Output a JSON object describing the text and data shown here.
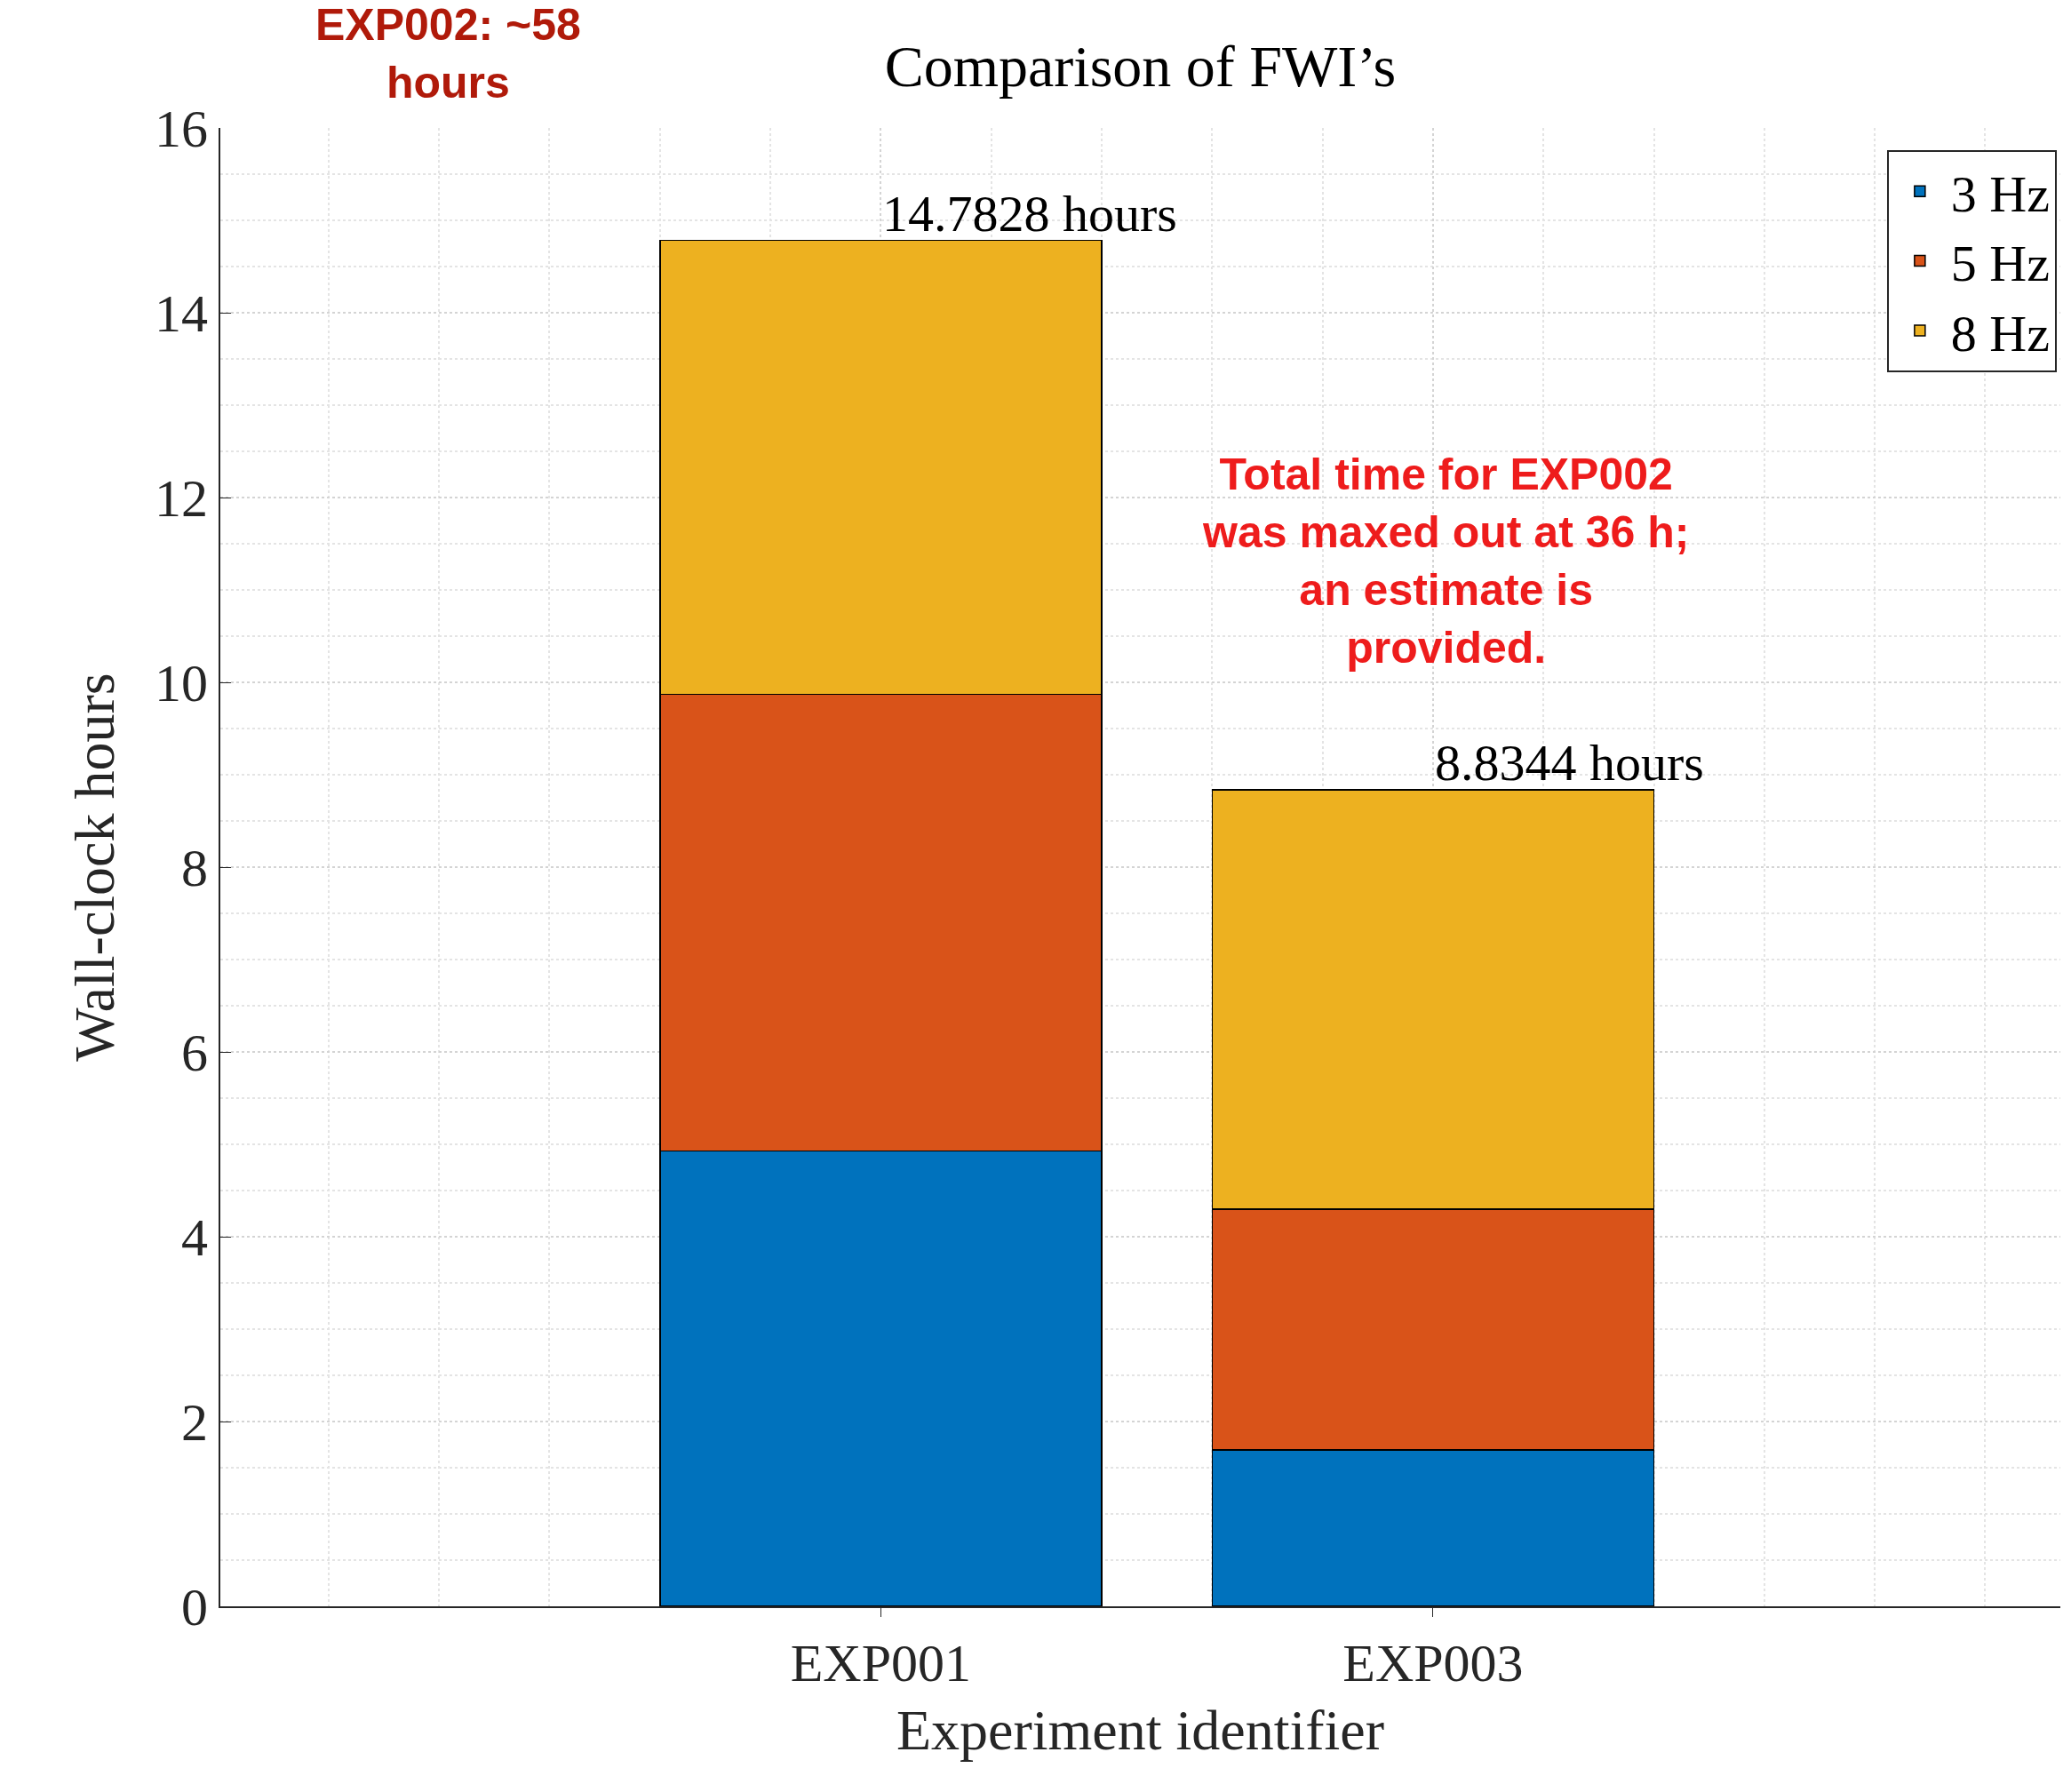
{
  "chart_data": {
    "type": "bar",
    "title": "Comparison of FWI’s",
    "xlabel": "Experiment identifier",
    "ylabel": "Wall-clock hours",
    "categories": [
      "EXP001",
      "EXP003"
    ],
    "series": [
      {
        "name": "3 Hz",
        "color": "#0072bd",
        "values": [
          4.93,
          1.69
        ]
      },
      {
        "name": "5 Hz",
        "color": "#d95319",
        "values": [
          4.94,
          2.61
        ]
      },
      {
        "name": "8 Hz",
        "color": "#edb120",
        "values": [
          4.9128,
          4.5344
        ]
      }
    ],
    "stacked": true,
    "totals": [
      "14.7828 hours",
      "8.8344 hours"
    ],
    "ylim": [
      0,
      16
    ],
    "yticks": [
      0,
      2,
      4,
      6,
      8,
      10,
      12,
      14,
      16
    ],
    "grid": true,
    "legend": "top right",
    "annotations": [
      "EXP002: ~58 hours",
      "Total time for EXP002 was maxed out at 36 h; an estimate is provided."
    ]
  }
}
